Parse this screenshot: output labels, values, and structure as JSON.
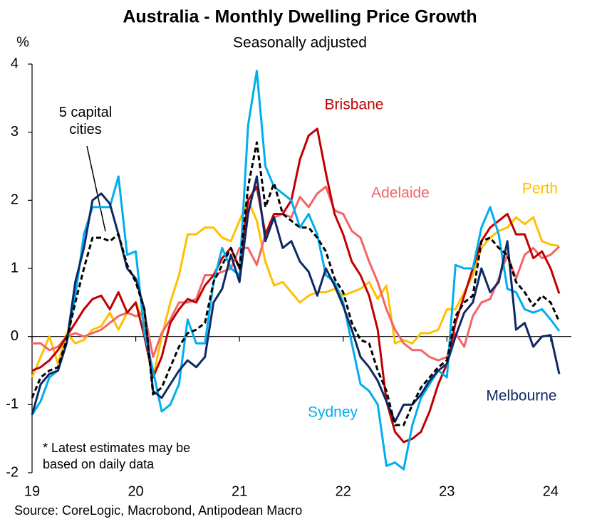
{
  "chart_data": {
    "type": "line",
    "title": "Australia - Monthly Dwelling Price Growth",
    "subtitle": "Seasonally adjusted",
    "y_label": "%",
    "footnote": "* Latest estimates may be based on daily data",
    "source": "Source: CoreLogic, Macrobond, Antipodean Macro",
    "x": [
      2019,
      2019.083,
      2019.167,
      2019.25,
      2019.333,
      2019.417,
      2019.5,
      2019.583,
      2019.667,
      2019.75,
      2019.833,
      2019.917,
      2020,
      2020.083,
      2020.167,
      2020.25,
      2020.333,
      2020.417,
      2020.5,
      2020.583,
      2020.667,
      2020.75,
      2020.833,
      2020.917,
      2021,
      2021.083,
      2021.167,
      2021.25,
      2021.333,
      2021.417,
      2021.5,
      2021.583,
      2021.667,
      2021.75,
      2021.833,
      2021.917,
      2022,
      2022.083,
      2022.167,
      2022.25,
      2022.333,
      2022.417,
      2022.5,
      2022.583,
      2022.667,
      2022.75,
      2022.833,
      2022.917,
      2023,
      2023.083,
      2023.167,
      2023.25,
      2023.333,
      2023.417,
      2023.5,
      2023.583,
      2023.667,
      2023.75,
      2023.833,
      2023.917,
      2024,
      2024.083
    ],
    "xlim": [
      2019,
      2024.2
    ],
    "xticks": [
      {
        "value": 2019,
        "label": "19"
      },
      {
        "value": 2020,
        "label": "20"
      },
      {
        "value": 2021,
        "label": "21"
      },
      {
        "value": 2022,
        "label": "22"
      },
      {
        "value": 2023,
        "label": "23"
      },
      {
        "value": 2024,
        "label": "24"
      }
    ],
    "ylim": [
      -2,
      4
    ],
    "yticks": [
      -2,
      -1,
      0,
      1,
      2,
      3,
      4
    ],
    "series": [
      {
        "name": "Perth",
        "color": "#FFC000",
        "values": [
          -0.6,
          -0.3,
          0.0,
          -0.4,
          0.05,
          -0.1,
          -0.05,
          0.1,
          0.15,
          0.35,
          0.1,
          0.35,
          0.5,
          0.2,
          -0.6,
          0.0,
          0.5,
          0.9,
          1.5,
          1.5,
          1.6,
          1.6,
          1.45,
          1.4,
          1.7,
          2.0,
          1.7,
          1.1,
          0.75,
          0.8,
          0.65,
          0.5,
          0.6,
          0.65,
          0.65,
          0.7,
          0.6,
          0.65,
          0.7,
          0.8,
          0.55,
          0.75,
          -0.1,
          -0.05,
          -0.1,
          0.05,
          0.05,
          0.1,
          0.4,
          0.4,
          0.65,
          0.9,
          1.3,
          1.45,
          1.55,
          1.6,
          1.75,
          1.65,
          1.75,
          1.4,
          1.35,
          1.33
        ]
      },
      {
        "name": "Adelaide",
        "color": "#F26468",
        "values": [
          -0.1,
          -0.1,
          -0.2,
          -0.15,
          0.0,
          0.05,
          0.0,
          0.05,
          0.1,
          0.2,
          0.3,
          0.35,
          0.3,
          0.35,
          -0.3,
          0.05,
          0.25,
          0.5,
          0.5,
          0.55,
          0.9,
          0.9,
          0.95,
          1.0,
          1.3,
          1.3,
          1.05,
          1.5,
          1.75,
          1.8,
          1.75,
          2.05,
          1.9,
          2.1,
          2.2,
          1.85,
          1.8,
          1.55,
          1.45,
          1.1,
          0.8,
          0.4,
          0.1,
          -0.1,
          -0.2,
          -0.2,
          -0.3,
          -0.35,
          -0.3,
          0.05,
          -0.15,
          0.3,
          0.5,
          0.55,
          0.85,
          1.2,
          0.85,
          1.2,
          1.3,
          1.15,
          1.2,
          1.32
        ]
      },
      {
        "name": "Brisbane",
        "color": "#C00000",
        "values": [
          -0.5,
          -0.45,
          -0.35,
          -0.2,
          0.0,
          0.2,
          0.4,
          0.55,
          0.6,
          0.4,
          0.65,
          0.35,
          0.5,
          0.0,
          -0.6,
          -0.3,
          0.2,
          0.4,
          0.55,
          0.5,
          0.75,
          0.9,
          1.15,
          1.3,
          1.0,
          2.0,
          2.2,
          1.5,
          1.8,
          1.8,
          2.0,
          2.6,
          2.95,
          3.05,
          2.4,
          1.8,
          1.5,
          1.1,
          0.9,
          0.6,
          0.1,
          -0.95,
          -1.4,
          -1.55,
          -1.5,
          -1.4,
          -1.1,
          -0.7,
          -0.4,
          0.2,
          0.6,
          1.0,
          1.4,
          1.6,
          1.7,
          1.8,
          1.5,
          1.5,
          1.15,
          1.25,
          1.0,
          0.63
        ]
      },
      {
        "name": "Sydney",
        "color": "#00AEEF",
        "values": [
          -1.15,
          -0.95,
          -0.6,
          -0.5,
          -0.1,
          0.6,
          1.5,
          1.9,
          1.9,
          1.9,
          2.35,
          1.2,
          1.25,
          0.05,
          -0.5,
          -1.1,
          -1.0,
          -0.7,
          0.25,
          -0.1,
          -0.1,
          0.8,
          1.3,
          1.0,
          0.9,
          3.1,
          3.9,
          2.5,
          2.2,
          2.1,
          2.0,
          1.6,
          1.8,
          1.5,
          0.9,
          0.8,
          0.5,
          -0.1,
          -0.7,
          -0.8,
          -1.0,
          -1.9,
          -1.85,
          -1.95,
          -1.3,
          -0.9,
          -0.7,
          -0.5,
          -0.6,
          1.05,
          1.0,
          1.0,
          1.6,
          1.9,
          1.5,
          0.7,
          0.65,
          0.4,
          0.35,
          0.4,
          0.25,
          0.08
        ]
      },
      {
        "name": "Melbourne",
        "color": "#0E2A66",
        "values": [
          -1.15,
          -0.7,
          -0.55,
          -0.5,
          -0.1,
          0.8,
          1.3,
          2.0,
          2.1,
          1.95,
          1.5,
          1.0,
          0.85,
          0.4,
          -0.8,
          -0.9,
          -0.7,
          -0.5,
          -0.35,
          -0.45,
          -0.3,
          0.5,
          0.7,
          1.2,
          0.8,
          1.8,
          2.35,
          1.4,
          1.75,
          1.3,
          1.4,
          1.1,
          0.95,
          0.6,
          1.0,
          0.75,
          0.45,
          0.1,
          -0.3,
          -0.45,
          -0.65,
          -0.95,
          -1.25,
          -1.0,
          -1.0,
          -0.85,
          -0.65,
          -0.5,
          -0.4,
          0.0,
          0.35,
          0.5,
          1.0,
          0.65,
          0.8,
          1.4,
          0.1,
          0.2,
          -0.15,
          0.0,
          0.02,
          -0.55
        ]
      },
      {
        "name": "5 capital cities",
        "color": "#000000",
        "dashed": true,
        "values": [
          -0.9,
          -0.6,
          -0.5,
          -0.45,
          -0.05,
          0.5,
          1.0,
          1.45,
          1.45,
          1.4,
          1.5,
          1.05,
          0.8,
          0.4,
          -0.85,
          -0.75,
          -0.45,
          -0.15,
          0.05,
          0.1,
          0.2,
          0.8,
          1.05,
          1.3,
          1.0,
          2.2,
          2.85,
          1.9,
          2.25,
          1.8,
          1.7,
          1.6,
          1.6,
          1.45,
          1.25,
          0.85,
          0.65,
          0.2,
          -0.05,
          -0.1,
          -0.5,
          -0.8,
          -1.3,
          -1.3,
          -1.0,
          -0.75,
          -0.6,
          -0.45,
          -0.35,
          0.3,
          0.5,
          0.6,
          1.4,
          1.45,
          1.3,
          1.2,
          0.8,
          0.65,
          0.45,
          0.6,
          0.5,
          0.22
        ]
      }
    ]
  }
}
